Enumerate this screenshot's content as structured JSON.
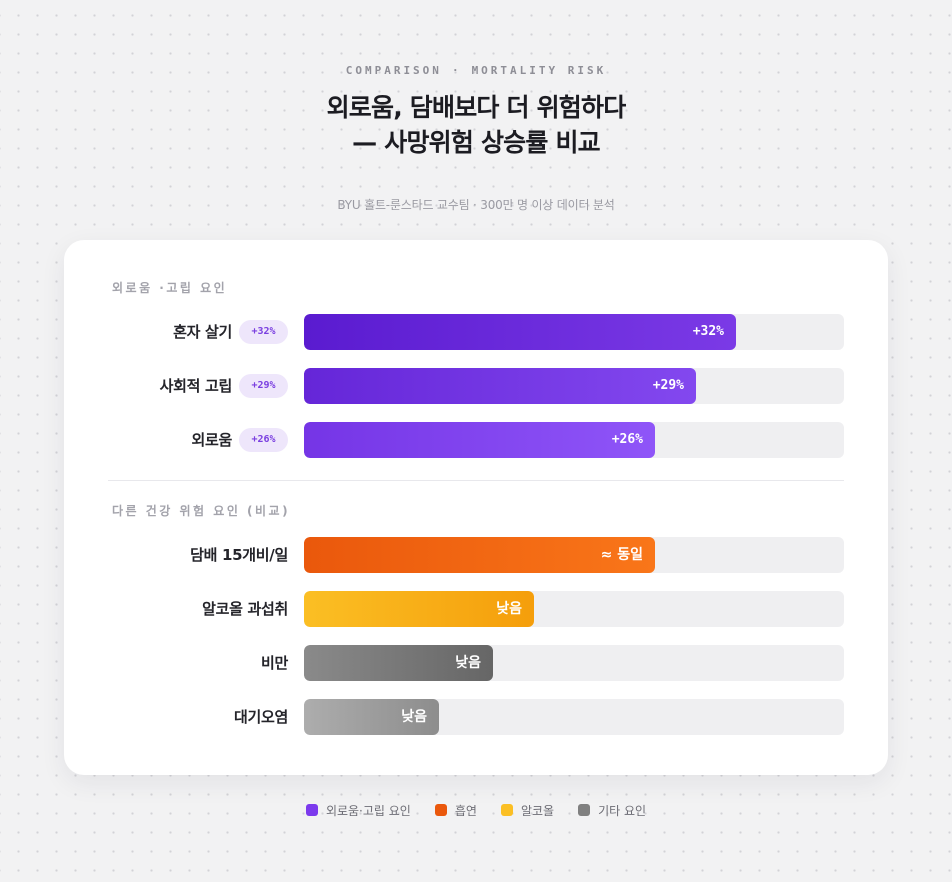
{
  "header": {
    "kicker_left": "COMPARISON",
    "kicker_sep": "·",
    "kicker_right": "MORTALITY RISK",
    "title_line1": "외로움, 담배보다 더 위험하다",
    "title_line2": "— 사망위험 상승률 비교",
    "subtitle": "BYU 홀트-룬스타드 교수팀 · 300만 명 이상 데이터 분석"
  },
  "sections": {
    "loneliness": "외로움 ·고립 요인",
    "other": "다른 건강 위험 요인 (비교)"
  },
  "colors": {
    "loneliness_dark": "#5a1bd0",
    "loneliness_light": "#8f55f8",
    "smoking": "#ea580c",
    "alcohol": "#fbbf24",
    "other": "#777777",
    "track": "#efeff1"
  },
  "legend": [
    {
      "label": "외로움·고립 요인",
      "color": "#7c3aed"
    },
    {
      "label": "흡연",
      "color": "#ea580c"
    },
    {
      "label": "알코올",
      "color": "#fbbf24"
    },
    {
      "label": "기타 요인",
      "color": "#808080"
    }
  ],
  "chart_data": {
    "type": "bar",
    "orientation": "horizontal",
    "title": "외로움, 담배보다 더 위험하다 — 사망위험 상승률 비교",
    "categories": [
      "혼자 살기",
      "사회적 고립",
      "외로움",
      "담배 15개비/일",
      "알코올 과섭취",
      "비만",
      "대기오염"
    ],
    "values": [
      32,
      29,
      26,
      26,
      17,
      14,
      10
    ],
    "value_labels": [
      "+32%",
      "+29%",
      "+26%",
      "≈ 동일",
      "낮음",
      "낮음",
      "낮음"
    ],
    "chip_labels": [
      "+32%",
      "+29%",
      "+26%"
    ],
    "groups": [
      "외로움 ·고립 요인",
      "외로움 ·고립 요인",
      "외로움 ·고립 요인",
      "다른 건강 위험 요인 (비교)",
      "다른 건강 위험 요인 (비교)",
      "다른 건강 위험 요인 (비교)",
      "다른 건강 위험 요인 (비교)"
    ],
    "xlim": [
      0,
      40
    ],
    "grid": false,
    "legend_position": "bottom-center"
  }
}
